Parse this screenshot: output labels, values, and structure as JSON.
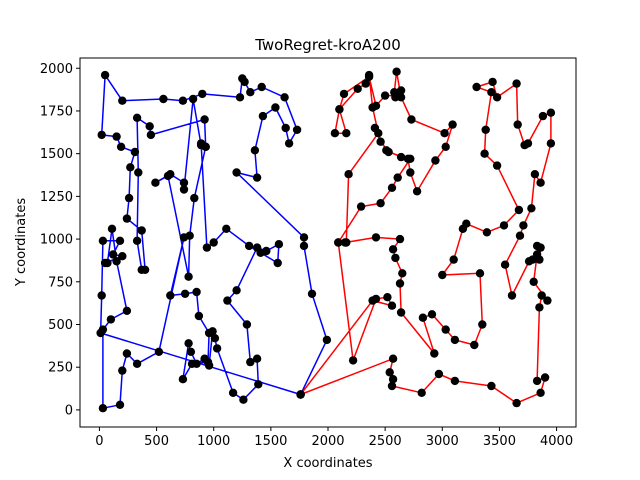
{
  "chart_data": {
    "type": "line",
    "title": "TwoRegret-kroA200",
    "xlabel": "X coordinates",
    "ylabel": "Y coordinates",
    "xlim": [
      -170,
      4170
    ],
    "ylim": [
      -100,
      2060
    ],
    "xticks": [
      0,
      500,
      1000,
      1500,
      2000,
      2500,
      3000,
      3500,
      4000
    ],
    "yticks": [
      0,
      250,
      500,
      750,
      1000,
      1250,
      1500,
      1750,
      2000
    ],
    "grid": false,
    "legend": "none",
    "series": [
      {
        "color": "#0000ff",
        "points": [
          [
            1760,
            90
          ],
          [
            1990,
            410
          ],
          [
            1860,
            680
          ],
          [
            1790,
            960
          ],
          [
            1790,
            1010
          ],
          [
            1200,
            1390
          ],
          [
            1380,
            1360
          ],
          [
            1360,
            1520
          ],
          [
            1430,
            1720
          ],
          [
            1540,
            1770
          ],
          [
            1630,
            1650
          ],
          [
            1660,
            1560
          ],
          [
            1730,
            1640
          ],
          [
            1620,
            1830
          ],
          [
            1420,
            1890
          ],
          [
            1320,
            1860
          ],
          [
            1270,
            1920
          ],
          [
            1250,
            1940
          ],
          [
            1230,
            1830
          ],
          [
            900,
            1850
          ],
          [
            730,
            1810
          ],
          [
            560,
            1820
          ],
          [
            200,
            1810
          ],
          [
            50,
            1960
          ],
          [
            20,
            1610
          ],
          [
            150,
            1600
          ],
          [
            190,
            1540
          ],
          [
            310,
            1510
          ],
          [
            270,
            1420
          ],
          [
            260,
            1240
          ],
          [
            240,
            1120
          ],
          [
            370,
            1050
          ],
          [
            400,
            820
          ],
          [
            370,
            820
          ],
          [
            330,
            990
          ],
          [
            340,
            1390
          ],
          [
            330,
            1710
          ],
          [
            440,
            1660
          ],
          [
            450,
            1610
          ],
          [
            920,
            1700
          ],
          [
            930,
            1540
          ],
          [
            890,
            1550
          ],
          [
            820,
            1820
          ],
          [
            740,
            1290
          ],
          [
            740,
            1330
          ],
          [
            620,
            1380
          ],
          [
            490,
            1330
          ],
          [
            600,
            1370
          ],
          [
            780,
            780
          ],
          [
            790,
            1020
          ],
          [
            830,
            1240
          ],
          [
            930,
            1540
          ],
          [
            890,
            1560
          ],
          [
            940,
            950
          ],
          [
            1000,
            980
          ],
          [
            1110,
            1060
          ],
          [
            1310,
            960
          ],
          [
            1410,
            920
          ],
          [
            1560,
            860
          ],
          [
            1570,
            970
          ],
          [
            1460,
            930
          ],
          [
            1380,
            950
          ],
          [
            1200,
            700
          ],
          [
            1120,
            640
          ],
          [
            1290,
            500
          ],
          [
            1320,
            280
          ],
          [
            1380,
            300
          ],
          [
            1390,
            150
          ],
          [
            1260,
            60
          ],
          [
            1170,
            100
          ],
          [
            1030,
            360
          ],
          [
            1010,
            420
          ],
          [
            990,
            460
          ],
          [
            960,
            260
          ],
          [
            920,
            300
          ],
          [
            850,
            270
          ],
          [
            800,
            340
          ],
          [
            780,
            390
          ],
          [
            730,
            180
          ],
          [
            810,
            270
          ],
          [
            950,
            280
          ],
          [
            960,
            450
          ],
          [
            870,
            550
          ],
          [
            850,
            690
          ],
          [
            750,
            680
          ],
          [
            620,
            670
          ],
          [
            740,
            1010
          ],
          [
            520,
            340
          ],
          [
            330,
            270
          ],
          [
            240,
            330
          ],
          [
            200,
            230
          ],
          [
            180,
            30
          ],
          [
            30,
            10
          ],
          [
            30,
            470
          ],
          [
            100,
            530
          ],
          [
            240,
            580
          ],
          [
            150,
            870
          ],
          [
            110,
            1060
          ],
          [
            70,
            860
          ],
          [
            50,
            860
          ],
          [
            200,
            900
          ],
          [
            120,
            910
          ],
          [
            180,
            990
          ],
          [
            30,
            990
          ],
          [
            20,
            670
          ],
          [
            10,
            450
          ],
          [
            1760,
            90
          ]
        ]
      },
      {
        "color": "#ff0000",
        "points": [
          [
            1760,
            90
          ],
          [
            2570,
            300
          ],
          [
            2540,
            220
          ],
          [
            2570,
            180
          ],
          [
            2560,
            140
          ],
          [
            2820,
            100
          ],
          [
            2970,
            210
          ],
          [
            3110,
            170
          ],
          [
            3430,
            140
          ],
          [
            3650,
            40
          ],
          [
            3860,
            100
          ],
          [
            3900,
            190
          ],
          [
            3830,
            170
          ],
          [
            3850,
            600
          ],
          [
            3870,
            670
          ],
          [
            3920,
            640
          ],
          [
            3800,
            750
          ],
          [
            3830,
            910
          ],
          [
            3830,
            960
          ],
          [
            3860,
            950
          ],
          [
            3850,
            880
          ],
          [
            3790,
            880
          ],
          [
            3760,
            870
          ],
          [
            3610,
            670
          ],
          [
            3550,
            850
          ],
          [
            3680,
            1020
          ],
          [
            3710,
            1080
          ],
          [
            3780,
            1180
          ],
          [
            3810,
            1380
          ],
          [
            3860,
            1330
          ],
          [
            3950,
            1560
          ],
          [
            3950,
            1740
          ],
          [
            3880,
            1720
          ],
          [
            3750,
            1560
          ],
          [
            3720,
            1550
          ],
          [
            3660,
            1670
          ],
          [
            3650,
            1910
          ],
          [
            3480,
            1830
          ],
          [
            3440,
            1920
          ],
          [
            3300,
            1890
          ],
          [
            3430,
            1860
          ],
          [
            3380,
            1640
          ],
          [
            3370,
            1500
          ],
          [
            3480,
            1430
          ],
          [
            3670,
            1170
          ],
          [
            3540,
            1080
          ],
          [
            3390,
            1040
          ],
          [
            3210,
            1090
          ],
          [
            3180,
            1060
          ],
          [
            3100,
            880
          ],
          [
            3000,
            790
          ],
          [
            3330,
            800
          ],
          [
            3350,
            500
          ],
          [
            3280,
            380
          ],
          [
            3110,
            410
          ],
          [
            3030,
            470
          ],
          [
            2910,
            560
          ],
          [
            2830,
            540
          ],
          [
            2930,
            330
          ],
          [
            2640,
            570
          ],
          [
            2630,
            740
          ],
          [
            2650,
            800
          ],
          [
            2590,
            890
          ],
          [
            2570,
            940
          ],
          [
            2630,
            1000
          ],
          [
            2420,
            1010
          ],
          [
            2150,
            980
          ],
          [
            2090,
            980
          ],
          [
            2290,
            1190
          ],
          [
            2460,
            1210
          ],
          [
            2560,
            1300
          ],
          [
            2610,
            1360
          ],
          [
            2720,
            1470
          ],
          [
            2640,
            1480
          ],
          [
            2510,
            1520
          ],
          [
            2410,
            1650
          ],
          [
            2460,
            1570
          ],
          [
            2530,
            1510
          ],
          [
            2700,
            1470
          ],
          [
            2720,
            1390
          ],
          [
            2780,
            1280
          ],
          [
            2940,
            1460
          ],
          [
            3030,
            1540
          ],
          [
            3090,
            1670
          ],
          [
            3020,
            1620
          ],
          [
            2730,
            1700
          ],
          [
            2640,
            1830
          ],
          [
            2600,
            1980
          ],
          [
            2580,
            1860
          ],
          [
            2590,
            1830
          ],
          [
            2640,
            1870
          ],
          [
            2590,
            1840
          ],
          [
            2500,
            1840
          ],
          [
            2420,
            1780
          ],
          [
            2360,
            1950
          ],
          [
            2140,
            1850
          ],
          [
            2100,
            1760
          ],
          [
            2160,
            1620
          ],
          [
            2060,
            1620
          ],
          [
            2100,
            1760
          ],
          [
            2260,
            1880
          ],
          [
            2330,
            1910
          ],
          [
            2360,
            1960
          ],
          [
            2390,
            1770
          ],
          [
            2440,
            1620
          ],
          [
            2180,
            1380
          ],
          [
            2160,
            980
          ],
          [
            2090,
            980
          ],
          [
            2220,
            290
          ],
          [
            2420,
            650
          ],
          [
            2520,
            660
          ],
          [
            2560,
            610
          ],
          [
            2390,
            640
          ],
          [
            1760,
            90
          ]
        ]
      }
    ]
  }
}
